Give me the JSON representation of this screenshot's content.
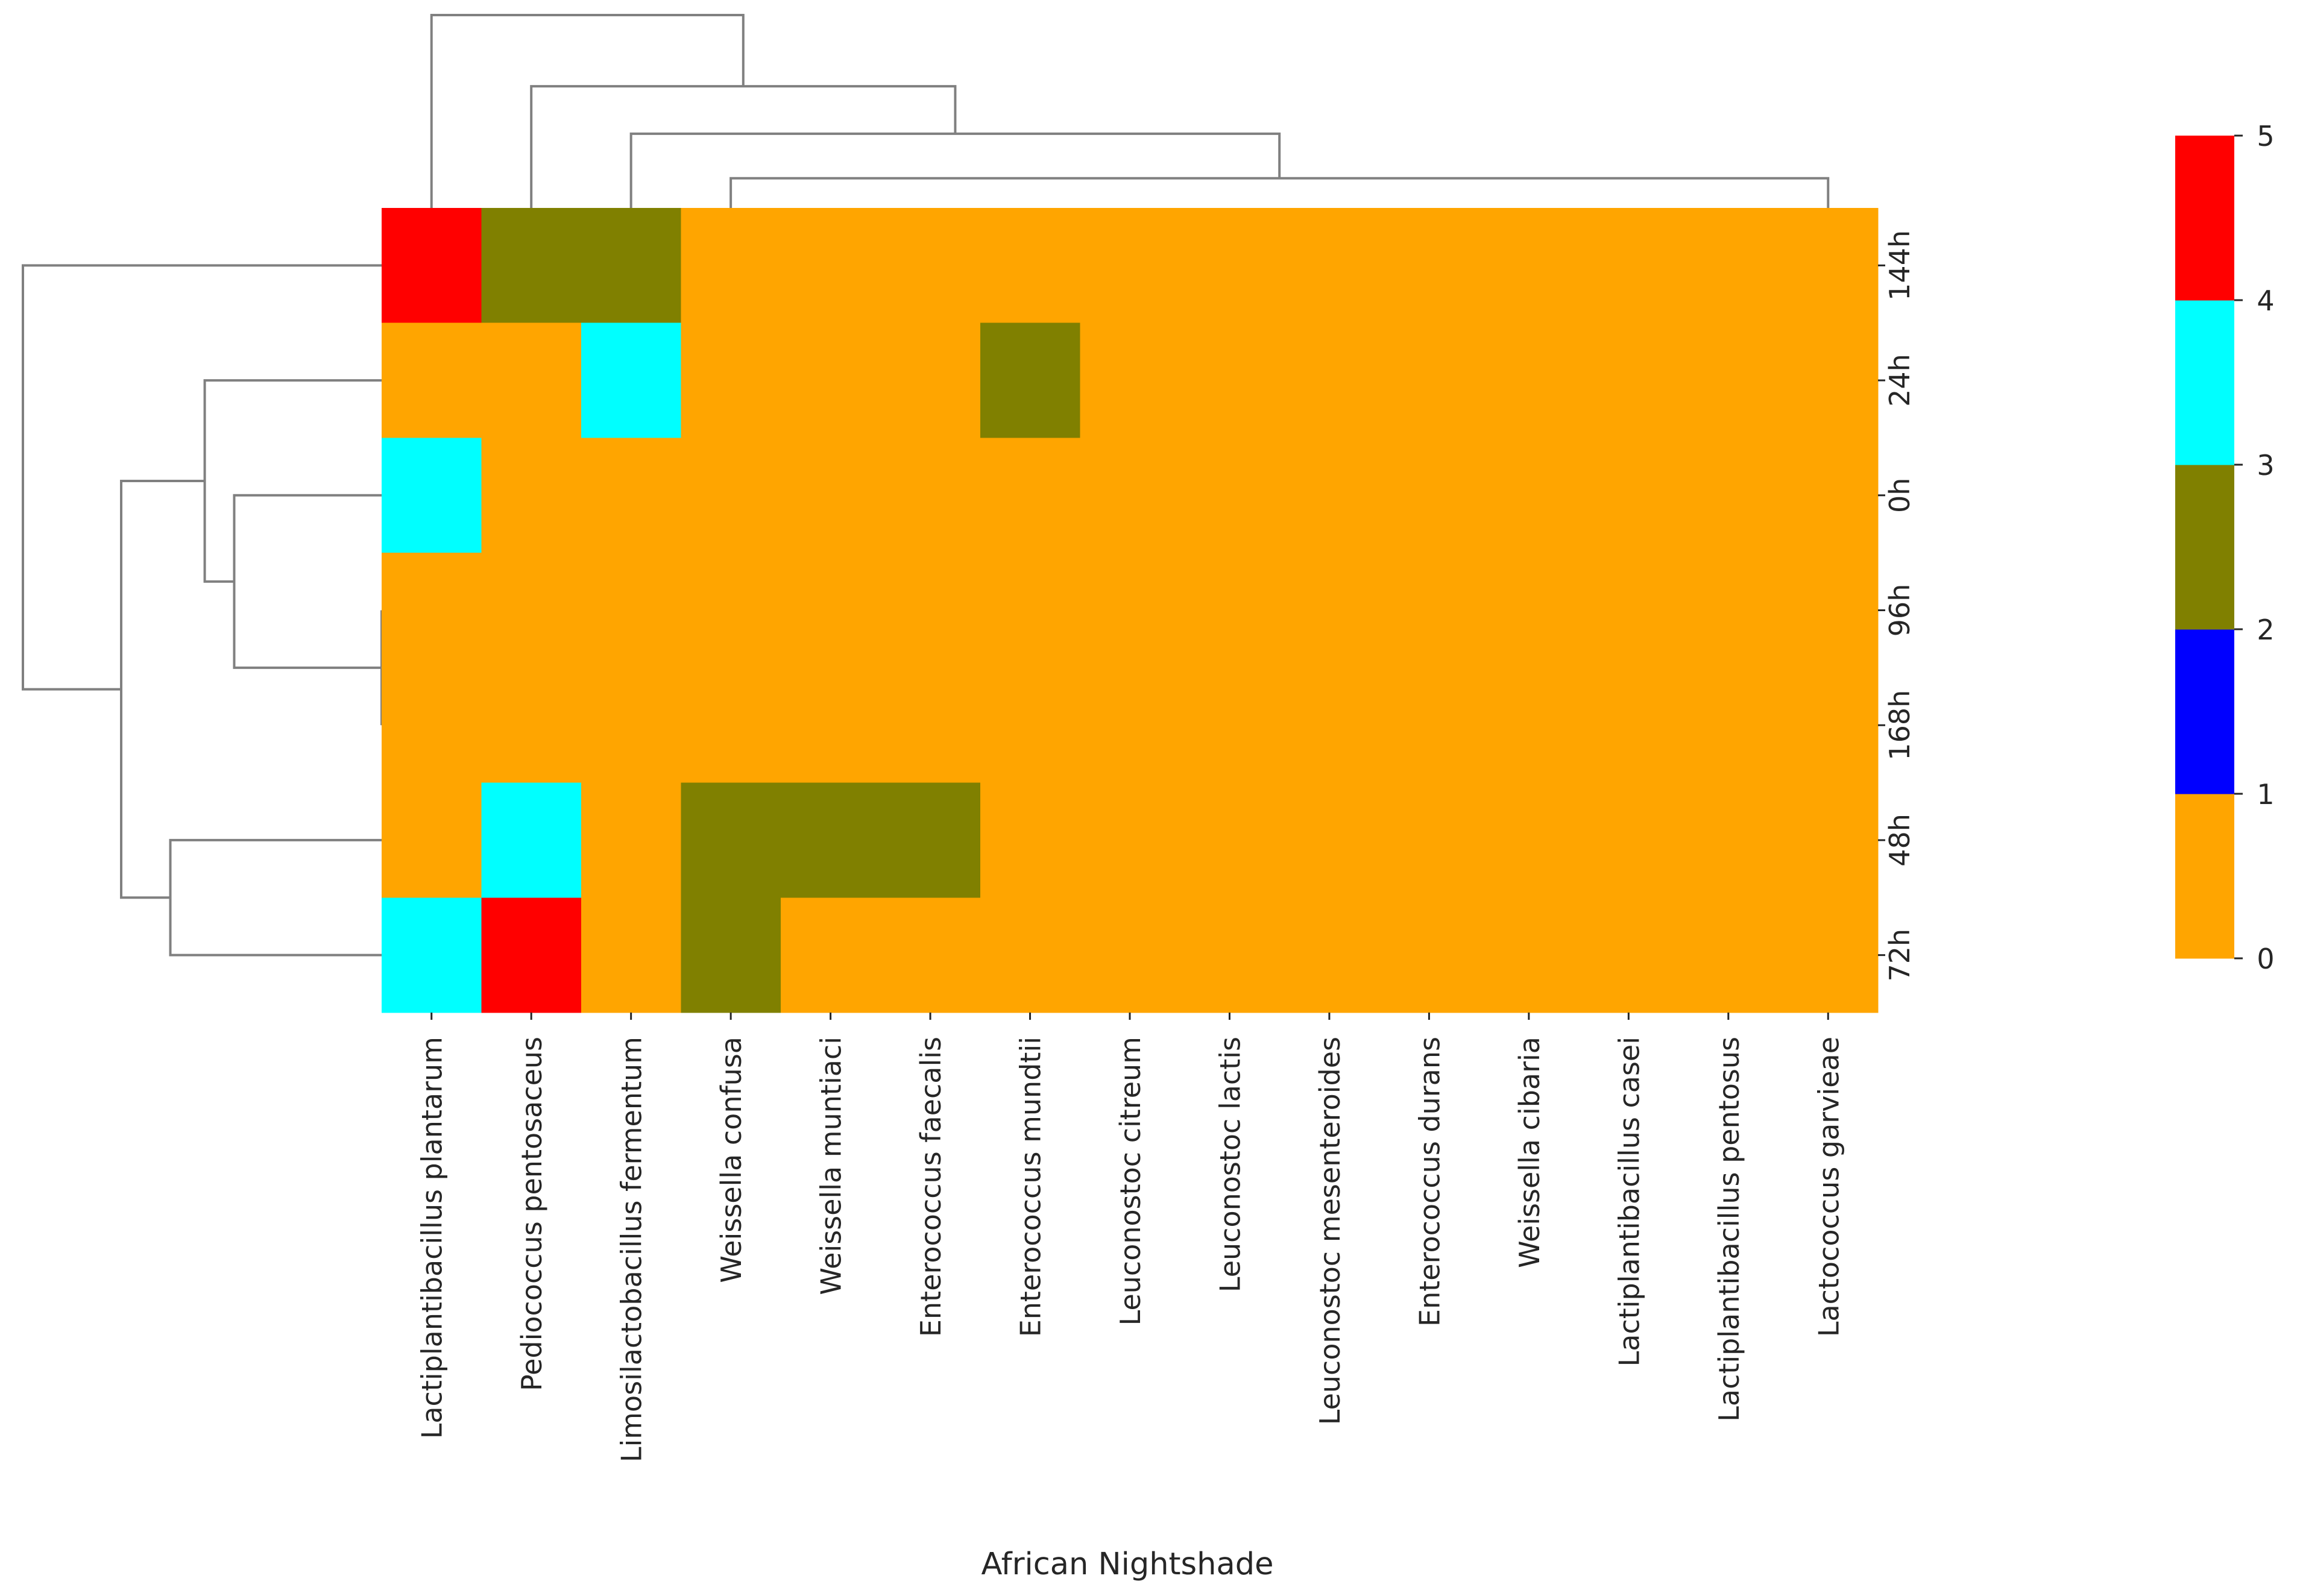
{
  "chart_data": {
    "type": "heatmap",
    "title": "",
    "xlabel": "African Nightshade",
    "ylabel": "",
    "columns": [
      "Lactiplantibacillus plantarum",
      "Pediococcus pentosaceus",
      "Limosilactobacillus fermentum",
      "Weissella confusa",
      "Weissella muntiaci",
      "Enterococcus faecalis",
      "Enterococcus mundtii",
      "Leuconostoc citreum",
      "Leuconostoc lactis",
      "Leuconostoc mesenteroides",
      "Enterococcus durans",
      "Weissella cibaria",
      "Lactiplantibacillus casei",
      "Lactiplantibacillus pentosus",
      "Lactococcus garvieae"
    ],
    "rows": [
      "144h",
      "24h",
      "0h",
      "96h",
      "168h",
      "48h",
      "72h"
    ],
    "values": [
      [
        5,
        2,
        2,
        0,
        0,
        0,
        0,
        0,
        0,
        0,
        0,
        0,
        0,
        0,
        0
      ],
      [
        0,
        0,
        3,
        0,
        0,
        0,
        2,
        0,
        0,
        0,
        0,
        0,
        0,
        0,
        0
      ],
      [
        3,
        0,
        0,
        0,
        0,
        0,
        0,
        0,
        0,
        0,
        0,
        0,
        0,
        0,
        0
      ],
      [
        0,
        0,
        0,
        0,
        0,
        0,
        0,
        0,
        0,
        0,
        0,
        0,
        0,
        0,
        0
      ],
      [
        0,
        0,
        0,
        0,
        0,
        0,
        0,
        0,
        0,
        0,
        0,
        0,
        0,
        0,
        0
      ],
      [
        0,
        3,
        0,
        2,
        2,
        2,
        0,
        0,
        0,
        0,
        0,
        0,
        0,
        0,
        0
      ],
      [
        3,
        4,
        0,
        2,
        0,
        0,
        0,
        0,
        0,
        0,
        0,
        0,
        0,
        0,
        0
      ]
    ],
    "colorbar": {
      "range": [
        0,
        5
      ],
      "ticks": [
        "0",
        "1",
        "2",
        "3",
        "4",
        "5"
      ],
      "bins": [
        {
          "from": 0,
          "to": 1,
          "color": "#FFA500"
        },
        {
          "from": 1,
          "to": 2,
          "color": "#0000FF"
        },
        {
          "from": 2,
          "to": 3,
          "color": "#808000"
        },
        {
          "from": 3,
          "to": 4,
          "color": "#00FFFF"
        },
        {
          "from": 4,
          "to": 5,
          "color": "#FF0000"
        }
      ]
    },
    "col_dendrogram": {
      "leaves": [
        0,
        1,
        2,
        3,
        4,
        5,
        6,
        7,
        8,
        9,
        10,
        11,
        12,
        13,
        14
      ],
      "merges": [
        {
          "members": [
            3,
            4,
            5,
            6,
            7,
            8,
            9,
            10,
            11,
            12,
            13,
            14
          ],
          "height": 1.0
        },
        {
          "members": [
            3,
            4,
            5
          ],
          "height": 1.0
        },
        {
          "members": [
            6,
            7,
            8,
            9,
            10,
            11,
            12,
            13,
            14
          ],
          "height": 1.0
        },
        {
          "members": [
            3,
            4,
            5,
            6,
            7,
            8,
            9,
            10,
            11,
            12,
            13,
            14
          ],
          "height": 1.2
        },
        {
          "members": [
            2,
            3,
            4,
            5,
            6,
            7,
            8,
            9,
            10,
            11,
            12,
            13,
            14
          ],
          "height": 2.5
        },
        {
          "members": [
            1,
            2,
            3,
            4,
            5,
            6,
            7,
            8,
            9,
            10,
            11,
            12,
            13,
            14
          ],
          "height": 4.1
        },
        {
          "members": [
            0,
            1,
            2,
            3,
            4,
            5,
            6,
            7,
            8,
            9,
            10,
            11,
            12,
            13,
            14
          ],
          "height": 6.5
        }
      ]
    },
    "row_dendrogram": {
      "leaves": [
        0,
        1,
        2,
        3,
        4,
        5,
        6
      ],
      "merges": [
        {
          "members": [
            3,
            4
          ],
          "height": 0.0
        },
        {
          "members": [
            2,
            3,
            4
          ],
          "height": 3.0
        },
        {
          "members": [
            1,
            2,
            3,
            4
          ],
          "height": 3.6
        },
        {
          "members": [
            5,
            6
          ],
          "height": 4.3
        },
        {
          "members": [
            1,
            2,
            3,
            4,
            5,
            6
          ],
          "height": 5.3
        },
        {
          "members": [
            0,
            1,
            2,
            3,
            4,
            5,
            6
          ],
          "height": 7.3
        }
      ]
    }
  }
}
